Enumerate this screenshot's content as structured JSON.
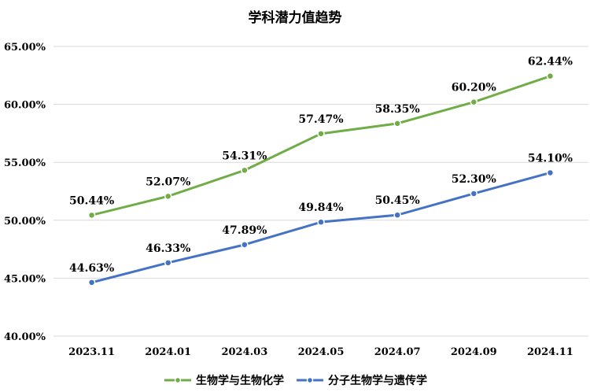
{
  "chart_data": {
    "type": "line",
    "title": "学科潜力值趋势",
    "categories": [
      "2023.11",
      "2024.01",
      "2024.03",
      "2024.05",
      "2024.07",
      "2024.09",
      "2024.11"
    ],
    "ylim": [
      40,
      65
    ],
    "yticks": [
      "40.00%",
      "45.00%",
      "50.00%",
      "55.00%",
      "60.00%",
      "65.00%"
    ],
    "ytick_values": [
      40,
      45,
      50,
      55,
      60,
      65
    ],
    "grid": true,
    "legend_position": "bottom",
    "series": [
      {
        "name": "生物学与生物化学",
        "color": "#70ad47",
        "values": [
          50.44,
          52.07,
          54.31,
          57.47,
          58.35,
          60.2,
          62.44
        ],
        "labels": [
          "50.44%",
          "52.07%",
          "54.31%",
          "57.47%",
          "58.35%",
          "60.20%",
          "62.44%"
        ]
      },
      {
        "name": "分子生物学与遗传学",
        "color": "#4472c4",
        "values": [
          44.63,
          46.33,
          47.89,
          49.84,
          50.45,
          52.3,
          54.1
        ],
        "labels": [
          "44.63%",
          "46.33%",
          "47.89%",
          "49.84%",
          "50.45%",
          "52.30%",
          "54.10%"
        ]
      }
    ]
  }
}
